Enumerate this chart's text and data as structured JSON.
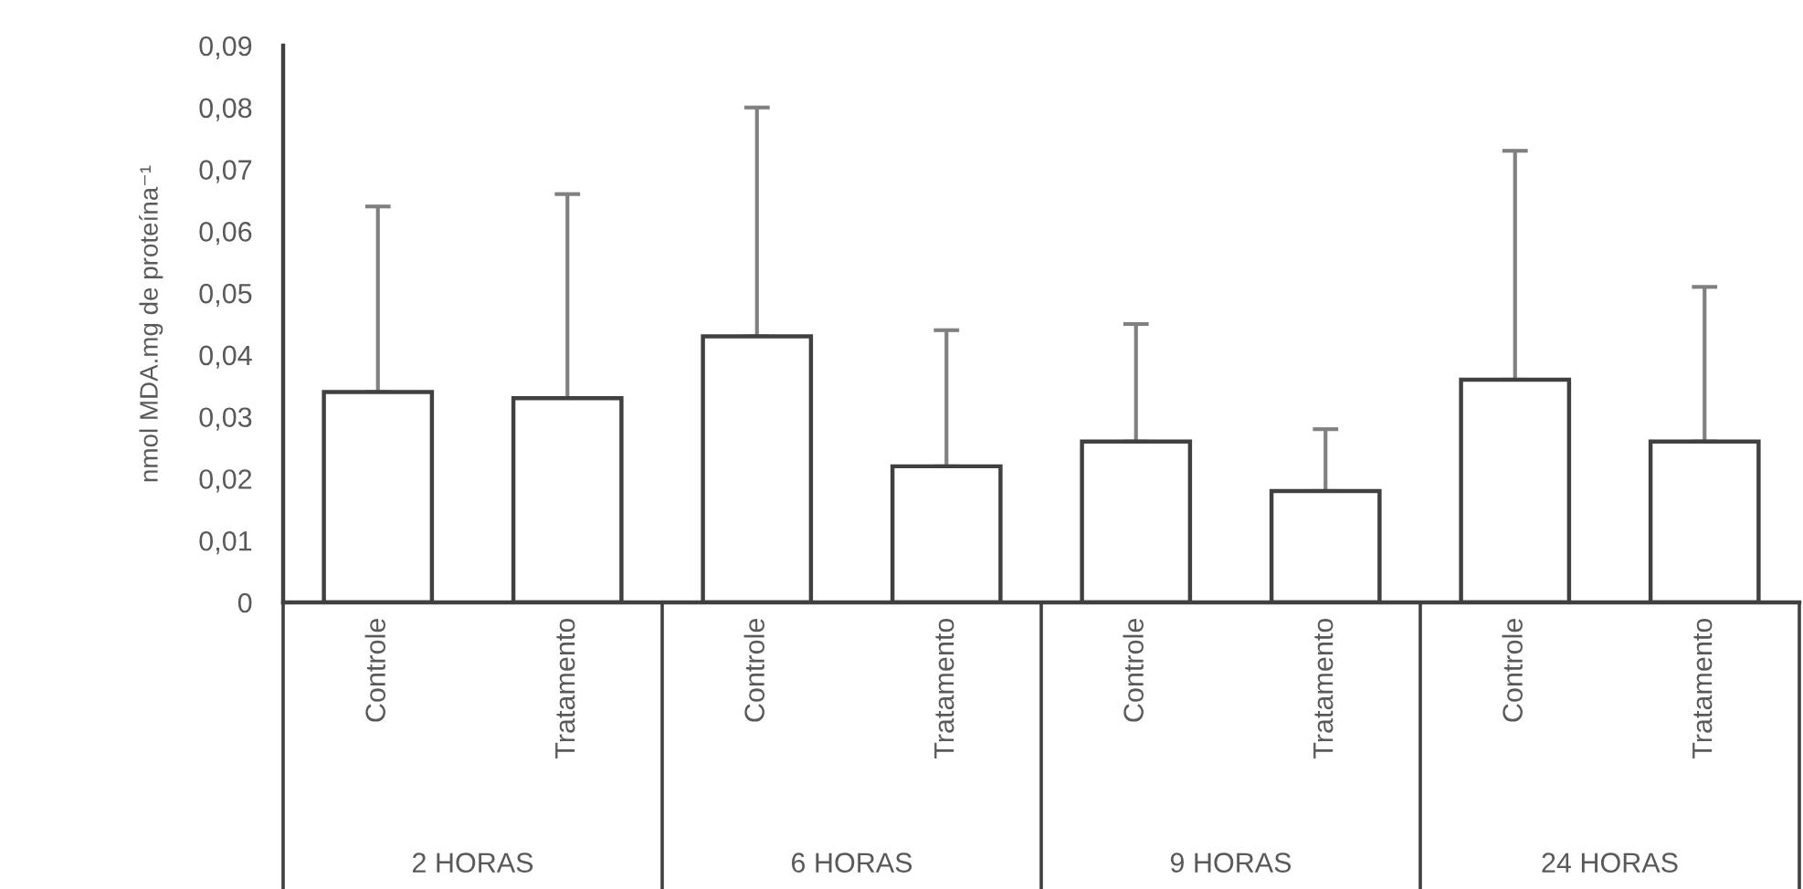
{
  "chart_data": {
    "type": "bar",
    "categories": [
      "Controle",
      "Tratamento",
      "Controle",
      "Tratamento",
      "Controle",
      "Tratamento",
      "Controle",
      "Tratamento"
    ],
    "values": [
      0.034,
      0.033,
      0.043,
      0.022,
      0.026,
      0.018,
      0.036,
      0.026
    ],
    "errors": [
      [
        0.034,
        0.064
      ],
      [
        0.033,
        0.066
      ],
      [
        0.043,
        0.08
      ],
      [
        0.022,
        0.044
      ],
      [
        0.026,
        0.045
      ],
      [
        0.018,
        0.028
      ],
      [
        0.036,
        0.073
      ],
      [
        0.026,
        0.051
      ]
    ],
    "color": "#ffffff",
    "ylabel": "nmol MDA.mg de proteína⁻¹",
    "ylim": [
      0,
      0.09
    ],
    "yticks": [
      0,
      {
        "value": 0.01,
        "label": "0,01"
      },
      {
        "value": 0.02,
        "label": "0,02"
      },
      {
        "value": 0.03,
        "label": "0,03"
      },
      {
        "value": 0.04,
        "label": "0,04"
      },
      {
        "value": 0.05,
        "label": "0,05"
      },
      {
        "value": 0.06,
        "label": "0,06"
      },
      {
        "value": 0.07,
        "label": "0,07"
      },
      {
        "value": 0.08,
        "label": "0,08"
      },
      {
        "value": 0.09,
        "label": "0,09"
      }
    ],
    "annotations": [
      "2 HORAS",
      "6 HORAS",
      "9 HORAS",
      "24 HORAS"
    ],
    "grid": false,
    "legend": false
  }
}
